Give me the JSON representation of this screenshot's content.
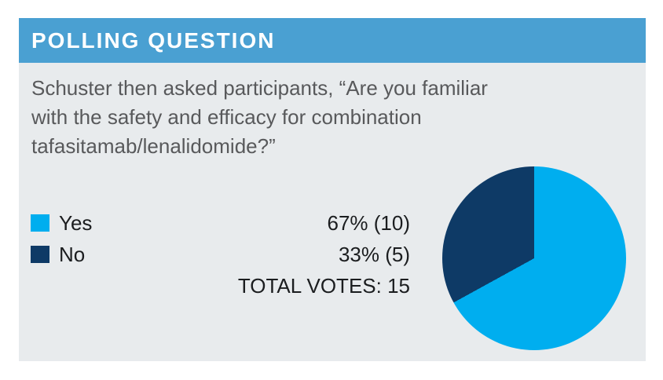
{
  "header": {
    "title": "POLLING QUESTION"
  },
  "question": {
    "full": "Schuster then asked participants, “Are you familiar with the safety and efficacy for combination tafasitamab/lenalidomide?”",
    "lines": [
      "Schuster then asked participants, “Are you familiar",
      "with the safety and efficacy for combination",
      "tafasitamab/lenalidomide?”"
    ]
  },
  "poll": {
    "options": [
      {
        "label": "Yes",
        "value_text": "67% (10)",
        "percent": 67,
        "votes": 10,
        "color": "#00aeef"
      },
      {
        "label": "No",
        "value_text": "33% (5)",
        "percent": 33,
        "votes": 5,
        "color": "#0e3a66"
      }
    ],
    "total_text": "TOTAL VOTES: 15",
    "total_votes": 15
  },
  "colors": {
    "header_bg": "#4aa0d2",
    "card_bg": "#e8ebed",
    "question_text": "#58595b",
    "stats_text": "#1b1d1f",
    "page_bg": "#ffffff"
  },
  "chart_data": {
    "type": "pie",
    "title": "POLLING QUESTION",
    "labels": [
      "Yes",
      "No"
    ],
    "values": [
      10,
      5
    ],
    "percents": [
      67,
      33
    ],
    "total_votes": 15,
    "colors": [
      "#00aeef",
      "#0e3a66"
    ],
    "start_angle_deg": 0,
    "direction": "clockwise",
    "legend_position": "left"
  }
}
